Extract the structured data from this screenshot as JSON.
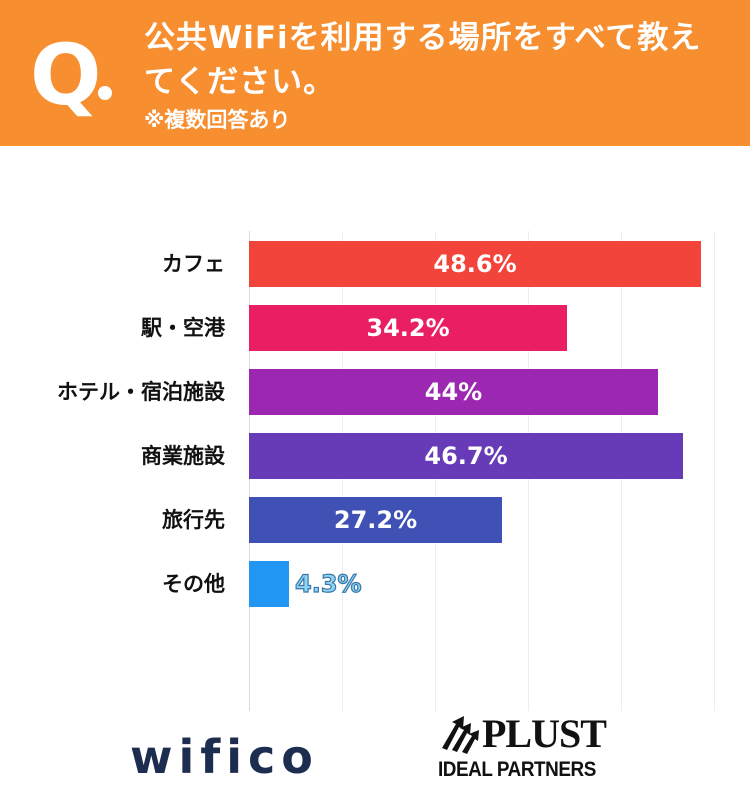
{
  "header": {
    "q_mark": "Q",
    "title_line1": "公共WiFiを利用する場所をすべて教え",
    "title_line2": "てください。",
    "note": "※複数回答あり",
    "background_color": "#f78e2f"
  },
  "chart_data": {
    "type": "bar",
    "orientation": "horizontal",
    "title": "公共WiFiを利用する場所をすべて教えてください。",
    "subtitle": "※複数回答あり",
    "xlabel": "",
    "ylabel": "",
    "unit": "%",
    "xlim": [
      0,
      50
    ],
    "grid": true,
    "categories": [
      "カフェ",
      "駅・空港",
      "ホテル・宿泊施設",
      "商業施設",
      "旅行先",
      "その他"
    ],
    "values": [
      48.6,
      34.2,
      44,
      46.7,
      27.2,
      4.3
    ],
    "value_labels": [
      "48.6%",
      "34.2%",
      "44%",
      "46.7%",
      "27.2%",
      "4.3%"
    ],
    "colors": [
      "#f2443a",
      "#e91e63",
      "#9c27b0",
      "#673ab7",
      "#3f51b5",
      "#2196f3"
    ]
  },
  "logos": {
    "left": "wifico",
    "right_main": "PLUST",
    "right_sub": "IDEAL PARTNERS"
  }
}
